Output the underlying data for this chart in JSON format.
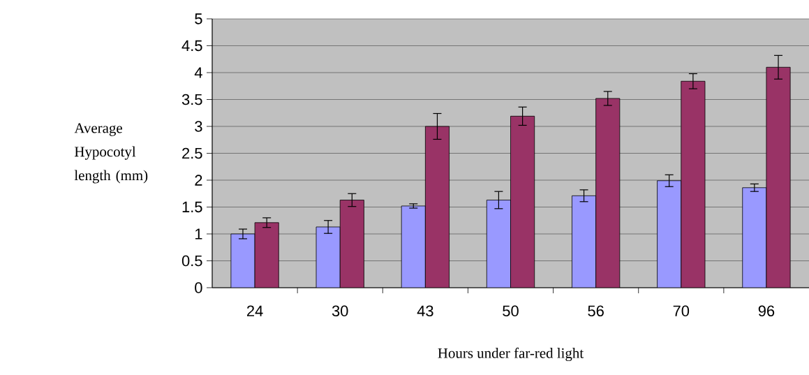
{
  "chart_data": {
    "type": "bar",
    "xlabel": "Hours under far-red light",
    "ylabel": "Average Hypocotyl length (mm)",
    "categories": [
      "24",
      "30",
      "43",
      "50",
      "56",
      "70",
      "96"
    ],
    "series": [
      {
        "color": "#9999ff",
        "values": [
          1.0,
          1.13,
          1.52,
          1.63,
          1.71,
          1.99,
          1.86
        ],
        "errors": [
          0.09,
          0.12,
          0.04,
          0.16,
          0.11,
          0.11,
          0.07
        ]
      },
      {
        "color": "#993366",
        "values": [
          1.21,
          1.63,
          3.0,
          3.19,
          3.52,
          3.84,
          4.1
        ],
        "errors": [
          0.09,
          0.12,
          0.24,
          0.17,
          0.13,
          0.14,
          0.22
        ]
      }
    ],
    "ylim": [
      0,
      5
    ],
    "yticks": [
      0,
      0.5,
      1,
      1.5,
      2,
      2.5,
      3,
      3.5,
      4,
      4.5,
      5
    ],
    "grid": "y"
  }
}
